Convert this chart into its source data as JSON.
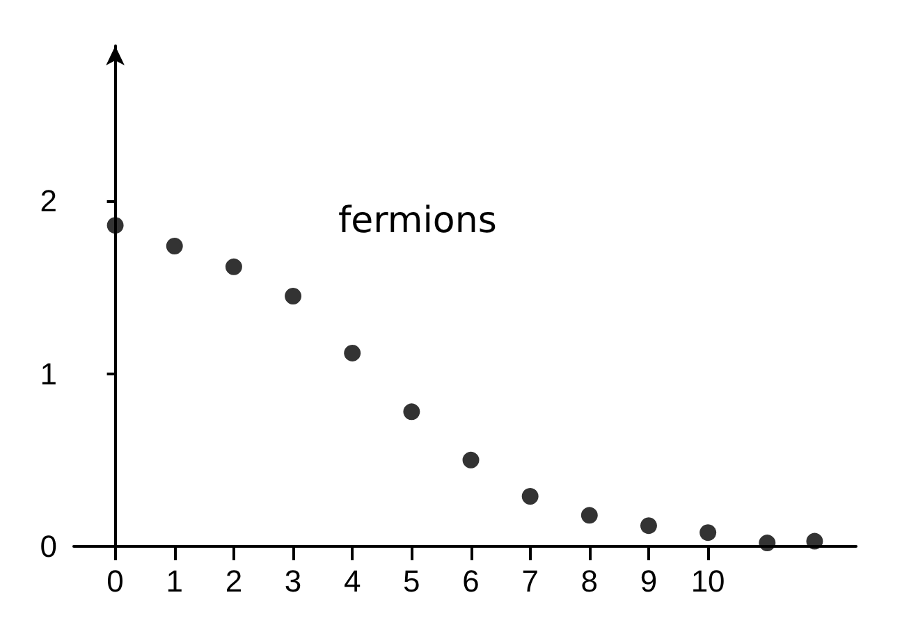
{
  "chart_data": {
    "type": "scatter",
    "x": [
      0,
      1,
      2,
      3,
      4,
      5,
      6,
      7,
      8,
      9,
      10,
      11,
      11.8
    ],
    "series": [
      {
        "name": "fermions",
        "color": "#000000",
        "values": [
          1.86,
          1.74,
          1.62,
          1.45,
          1.12,
          0.78,
          0.5,
          0.29,
          0.18,
          0.12,
          0.08,
          0.02,
          0.03
        ]
      }
    ],
    "xlim": [
      -0.7,
      12.5
    ],
    "xticks": [
      0,
      1,
      2,
      3,
      4,
      5,
      6,
      7,
      8,
      9,
      10
    ],
    "ylim": [
      0,
      2.9
    ],
    "yticks": [
      0,
      1,
      2
    ],
    "grid": false,
    "legend": false,
    "marker": "circle"
  }
}
